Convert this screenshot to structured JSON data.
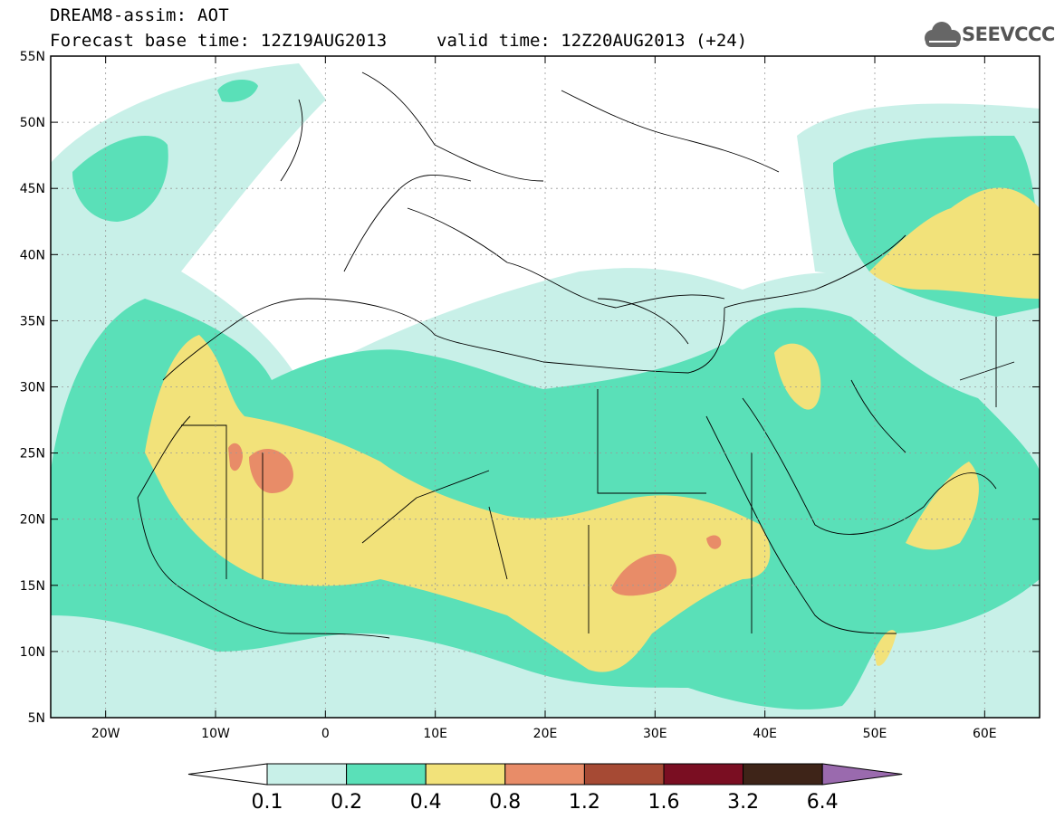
{
  "header": {
    "line1": "DREAM8-assim: AOT",
    "line2": "Forecast base time: 12Z19AUG2013",
    "valid": "valid time: 12Z20AUG2013 (+24)",
    "logo_text": "SEEVCCC"
  },
  "map": {
    "lat_labels": [
      "55N",
      "50N",
      "45N",
      "40N",
      "35N",
      "30N",
      "25N",
      "20N",
      "15N",
      "10N",
      "5N"
    ],
    "lon_labels": [
      "20W",
      "10W",
      "0",
      "10E",
      "20E",
      "30E",
      "40E",
      "50E",
      "60E"
    ],
    "lat_range": [
      5,
      55
    ],
    "lon_range": [
      -25,
      65
    ],
    "grid": "dotted"
  },
  "colorbar": {
    "levels": [
      "0.1",
      "0.2",
      "0.4",
      "0.8",
      "1.2",
      "1.6",
      "3.2",
      "6.4"
    ],
    "colors": [
      "#c8f0e8",
      "#5ae0b8",
      "#f2e27a",
      "#e88c68",
      "#a64a34",
      "#7a0e22",
      "#3e2418"
    ],
    "under_color": "#ffffff",
    "over_color": "#9a6aae"
  }
}
